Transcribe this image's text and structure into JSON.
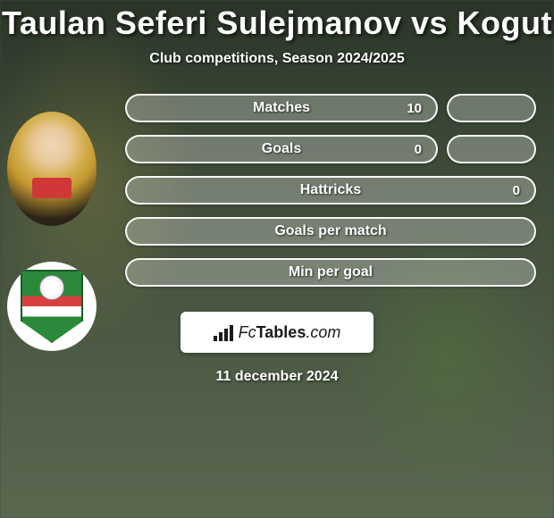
{
  "title": "Taulan Seferi Sulejmanov vs Kogut",
  "subtitle": "Club competitions, Season 2024/2025",
  "date": "11 december 2024",
  "brand": {
    "prefix": "Fc",
    "main": "Tables",
    "suffix": ".com"
  },
  "stats": {
    "rows": [
      {
        "label": "Matches",
        "value_left": "10",
        "has_right_pill": true
      },
      {
        "label": "Goals",
        "value_left": "0",
        "has_right_pill": true
      },
      {
        "label": "Hattricks",
        "value_left": "0",
        "has_right_pill": false
      },
      {
        "label": "Goals per match",
        "value_left": "",
        "has_right_pill": false
      },
      {
        "label": "Min per goal",
        "value_left": "",
        "has_right_pill": false
      }
    ]
  },
  "style": {
    "pill_bg": "rgba(255,255,255,0.28)",
    "pill_border": "rgba(255,255,255,0.95)",
    "text_color": "#ffffff",
    "title_fontsize": 36,
    "subtitle_fontsize": 16,
    "stat_label_fontsize": 16,
    "pill_height": 32,
    "pill_radius": 16,
    "side_pill_width": 100,
    "brand_box_bg": "#ffffff",
    "page_bg_gradient": [
      "#2a3528",
      "#3d4a38",
      "#4a5842",
      "#5a6850"
    ]
  },
  "players": {
    "player1": {
      "name": "Taulan Seferi Sulejmanov",
      "avatar_type": "photo"
    },
    "player2": {
      "name": "Kogut",
      "avatar_type": "crest"
    }
  }
}
